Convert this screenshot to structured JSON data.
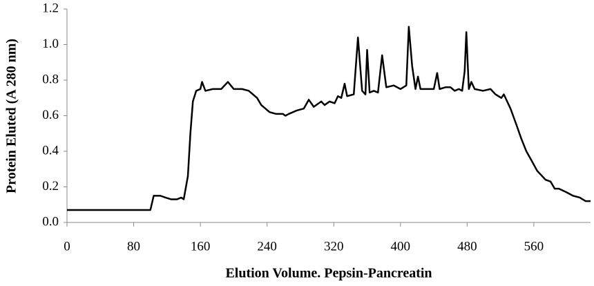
{
  "chart_data": {
    "type": "line",
    "x_label": "Elution Volume. Pepsin-Pancreatin",
    "y_label": "Protein Eluted (A 280 nm)",
    "x": [
      0,
      100,
      104,
      112,
      118,
      125,
      132,
      137,
      140,
      145,
      148,
      151,
      155,
      160,
      162,
      166,
      175,
      185,
      193,
      200,
      210,
      218,
      228,
      233,
      243,
      251,
      259,
      262,
      266,
      276,
      284,
      290,
      296,
      305,
      309,
      315,
      321,
      325,
      329,
      333,
      336,
      344,
      349,
      354,
      358,
      360,
      363,
      368,
      373,
      378,
      383,
      392,
      400,
      407,
      410,
      414,
      418,
      421,
      424,
      429,
      440,
      444,
      447,
      454,
      460,
      465,
      470,
      474,
      477,
      479,
      482,
      485,
      489,
      499,
      508,
      514,
      521,
      524,
      532,
      539,
      545,
      551,
      557,
      564,
      574,
      580,
      585,
      590,
      599,
      607,
      615,
      622,
      628
    ],
    "series": [
      {
        "name": "Protein Eluted",
        "color": "#000000",
        "values": [
          0.07,
          0.07,
          0.15,
          0.15,
          0.14,
          0.13,
          0.13,
          0.14,
          0.13,
          0.26,
          0.5,
          0.68,
          0.74,
          0.75,
          0.79,
          0.74,
          0.75,
          0.75,
          0.79,
          0.75,
          0.75,
          0.74,
          0.7,
          0.66,
          0.62,
          0.61,
          0.61,
          0.6,
          0.61,
          0.63,
          0.64,
          0.69,
          0.65,
          0.68,
          0.66,
          0.68,
          0.67,
          0.71,
          0.7,
          0.78,
          0.71,
          0.72,
          1.04,
          0.74,
          0.72,
          0.97,
          0.73,
          0.74,
          0.73,
          0.94,
          0.76,
          0.77,
          0.75,
          0.77,
          1.1,
          0.88,
          0.75,
          0.82,
          0.75,
          0.75,
          0.75,
          0.84,
          0.75,
          0.76,
          0.76,
          0.74,
          0.75,
          0.74,
          0.85,
          1.07,
          0.75,
          0.79,
          0.75,
          0.74,
          0.75,
          0.72,
          0.7,
          0.72,
          0.64,
          0.55,
          0.47,
          0.4,
          0.35,
          0.29,
          0.24,
          0.23,
          0.19,
          0.19,
          0.17,
          0.15,
          0.14,
          0.12,
          0.12
        ]
      }
    ],
    "xlim": [
      0,
      628
    ],
    "xticks": [
      0,
      80,
      160,
      240,
      320,
      400,
      480,
      560
    ],
    "ylim": [
      0,
      1.2
    ],
    "yticks": [
      {
        "value": 0,
        "label": "0.0"
      },
      0.2,
      0.4,
      0.6,
      0.8,
      {
        "value": 1,
        "label": "1.0"
      },
      1.2
    ],
    "grid": false
  }
}
